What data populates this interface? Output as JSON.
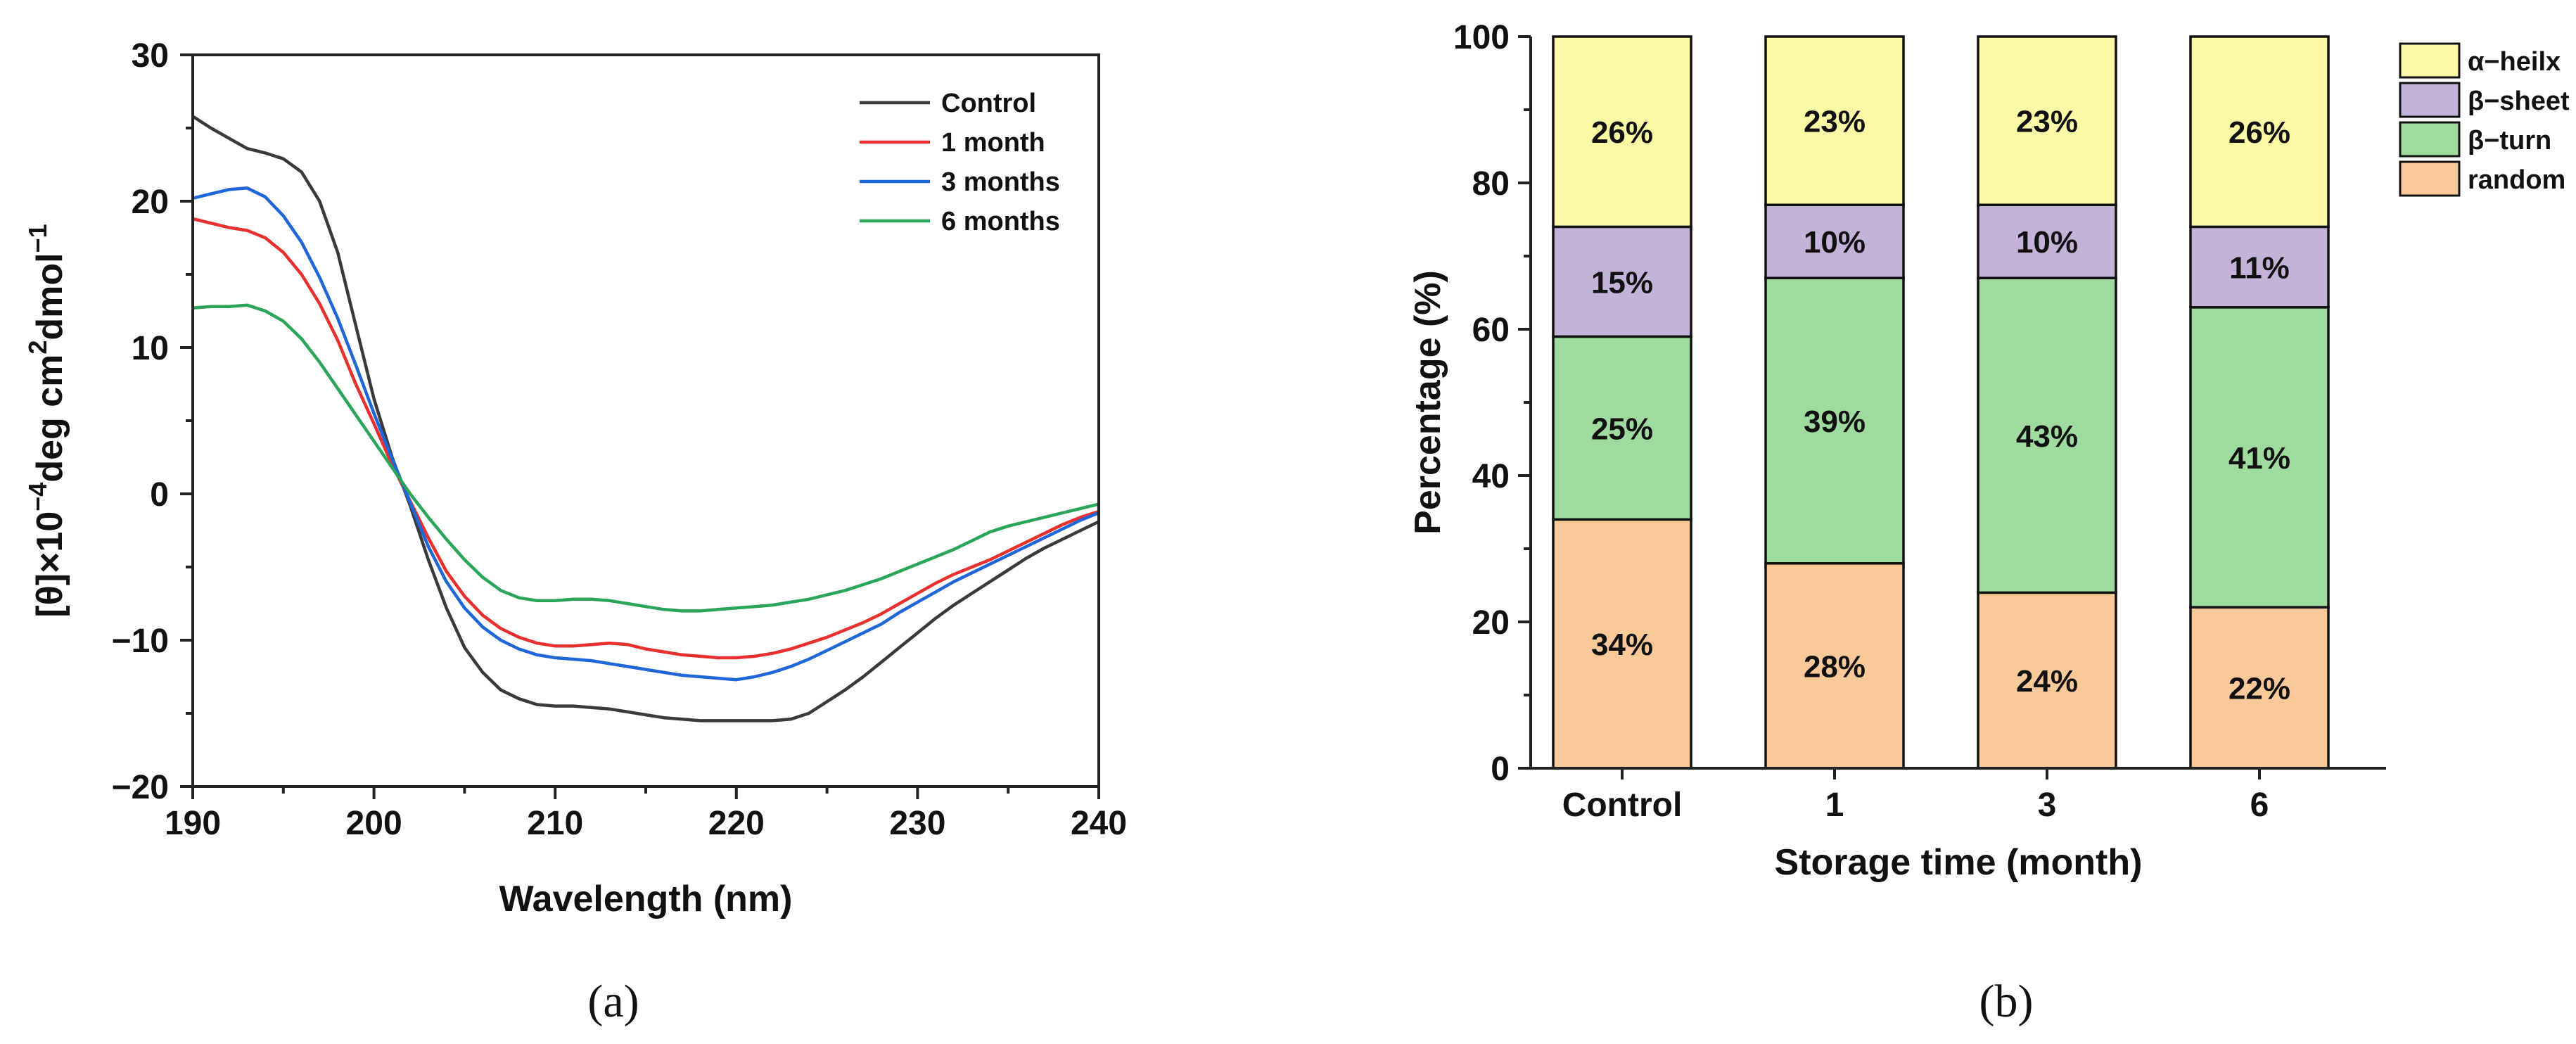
{
  "chart_data": [
    {
      "panel": "(a)",
      "type": "line",
      "xlabel": "Wavelength (nm)",
      "ylabel_parts": {
        "pre": "[θ]×10",
        "exp1": "−4",
        "mid": "deg cm",
        "exp2": "2",
        "post": "dmol",
        "exp3": "−1"
      },
      "xlim": [
        190,
        240
      ],
      "ylim": [
        -20,
        30
      ],
      "xticks": [
        190,
        200,
        210,
        220,
        230,
        240
      ],
      "yticks": [
        -20,
        -10,
        0,
        10,
        20,
        30
      ],
      "ytick_labels": [
        "−20",
        "−10",
        "0",
        "10",
        "20",
        "30"
      ],
      "legend_position": "top-right",
      "series": [
        {
          "name": "Control",
          "color": "#3a3a3a",
          "x": [
            190,
            191,
            192,
            193,
            194,
            195,
            196,
            197,
            198,
            199,
            200,
            201,
            202,
            203,
            204,
            205,
            206,
            207,
            208,
            209,
            210,
            211,
            212,
            213,
            214,
            215,
            216,
            217,
            218,
            219,
            220,
            221,
            222,
            223,
            224,
            225,
            226,
            227,
            228,
            229,
            230,
            231,
            232,
            233,
            234,
            235,
            236,
            237,
            238,
            239,
            240
          ],
          "y": [
            25.8,
            25.0,
            24.3,
            23.6,
            23.3,
            22.9,
            22.0,
            20.0,
            16.5,
            11.5,
            6.5,
            2.5,
            -0.8,
            -4.5,
            -7.8,
            -10.5,
            -12.2,
            -13.4,
            -14.0,
            -14.4,
            -14.5,
            -14.5,
            -14.6,
            -14.7,
            -14.9,
            -15.1,
            -15.3,
            -15.4,
            -15.5,
            -15.5,
            -15.5,
            -15.5,
            -15.5,
            -15.4,
            -15.0,
            -14.2,
            -13.4,
            -12.5,
            -11.5,
            -10.5,
            -9.5,
            -8.5,
            -7.6,
            -6.8,
            -6.0,
            -5.2,
            -4.4,
            -3.7,
            -3.1,
            -2.5,
            -1.9
          ]
        },
        {
          "name": "1 month",
          "color": "#e8302e",
          "x": [
            190,
            191,
            192,
            193,
            194,
            195,
            196,
            197,
            198,
            199,
            200,
            201,
            202,
            203,
            204,
            205,
            206,
            207,
            208,
            209,
            210,
            211,
            212,
            213,
            214,
            215,
            216,
            217,
            218,
            219,
            220,
            221,
            222,
            223,
            224,
            225,
            226,
            227,
            228,
            229,
            230,
            231,
            232,
            233,
            234,
            235,
            236,
            237,
            238,
            239,
            240
          ],
          "y": [
            18.8,
            18.5,
            18.2,
            18.0,
            17.5,
            16.5,
            15.0,
            13.0,
            10.5,
            7.5,
            4.8,
            2.0,
            -0.5,
            -3.0,
            -5.3,
            -7.0,
            -8.3,
            -9.2,
            -9.8,
            -10.2,
            -10.4,
            -10.4,
            -10.3,
            -10.2,
            -10.3,
            -10.6,
            -10.8,
            -11.0,
            -11.1,
            -11.2,
            -11.2,
            -11.1,
            -10.9,
            -10.6,
            -10.2,
            -9.8,
            -9.3,
            -8.8,
            -8.2,
            -7.5,
            -6.8,
            -6.1,
            -5.5,
            -5.0,
            -4.5,
            -3.9,
            -3.3,
            -2.7,
            -2.1,
            -1.6,
            -1.2
          ]
        },
        {
          "name": "3 months",
          "color": "#1f66d8",
          "x": [
            190,
            191,
            192,
            193,
            194,
            195,
            196,
            197,
            198,
            199,
            200,
            201,
            202,
            203,
            204,
            205,
            206,
            207,
            208,
            209,
            210,
            211,
            212,
            213,
            214,
            215,
            216,
            217,
            218,
            219,
            220,
            221,
            222,
            223,
            224,
            225,
            226,
            227,
            228,
            229,
            230,
            231,
            232,
            233,
            234,
            235,
            236,
            237,
            238,
            239,
            240
          ],
          "y": [
            20.2,
            20.5,
            20.8,
            20.9,
            20.3,
            19.0,
            17.2,
            14.8,
            12.0,
            8.8,
            5.5,
            2.4,
            -0.6,
            -3.6,
            -6.0,
            -7.8,
            -9.1,
            -10.0,
            -10.6,
            -11.0,
            -11.2,
            -11.3,
            -11.4,
            -11.6,
            -11.8,
            -12.0,
            -12.2,
            -12.4,
            -12.5,
            -12.6,
            -12.7,
            -12.5,
            -12.2,
            -11.8,
            -11.3,
            -10.7,
            -10.1,
            -9.5,
            -8.9,
            -8.1,
            -7.4,
            -6.7,
            -6.0,
            -5.4,
            -4.8,
            -4.2,
            -3.6,
            -3.0,
            -2.4,
            -1.8,
            -1.3
          ]
        },
        {
          "name": "6 months",
          "color": "#2aa55a",
          "x": [
            190,
            191,
            192,
            193,
            194,
            195,
            196,
            197,
            198,
            199,
            200,
            201,
            202,
            203,
            204,
            205,
            206,
            207,
            208,
            209,
            210,
            211,
            212,
            213,
            214,
            215,
            216,
            217,
            218,
            219,
            220,
            221,
            222,
            223,
            224,
            225,
            226,
            227,
            228,
            229,
            230,
            231,
            232,
            233,
            234,
            235,
            236,
            237,
            238,
            239,
            240
          ],
          "y": [
            12.7,
            12.8,
            12.8,
            12.9,
            12.5,
            11.8,
            10.6,
            9.0,
            7.2,
            5.4,
            3.6,
            1.8,
            0.0,
            -1.6,
            -3.1,
            -4.5,
            -5.7,
            -6.6,
            -7.1,
            -7.3,
            -7.3,
            -7.2,
            -7.2,
            -7.3,
            -7.5,
            -7.7,
            -7.9,
            -8.0,
            -8.0,
            -7.9,
            -7.8,
            -7.7,
            -7.6,
            -7.4,
            -7.2,
            -6.9,
            -6.6,
            -6.2,
            -5.8,
            -5.3,
            -4.8,
            -4.3,
            -3.8,
            -3.2,
            -2.6,
            -2.2,
            -1.9,
            -1.6,
            -1.3,
            -1.0,
            -0.7
          ]
        }
      ]
    },
    {
      "panel": "(b)",
      "type": "bar",
      "stacked": true,
      "xlabel": "Storage time (month)",
      "ylabel": "Percentage (%)",
      "ylim": [
        0,
        100
      ],
      "yticks": [
        0,
        20,
        40,
        60,
        80,
        100
      ],
      "categories": [
        "Control",
        "1",
        "3",
        "6"
      ],
      "legend_position": "top-right",
      "series": [
        {
          "name": "random",
          "color": "#f9c99a",
          "values": [
            34,
            28,
            24,
            22
          ],
          "labels": [
            "34%",
            "28%",
            "24%",
            "22%"
          ]
        },
        {
          "name": "β−turn",
          "color": "#9fda9f",
          "values": [
            25,
            39,
            43,
            41
          ],
          "labels": [
            "25%",
            "39%",
            "43%",
            "41%"
          ]
        },
        {
          "name": "β−sheet",
          "color": "#c3b3d9",
          "values": [
            15,
            10,
            10,
            11
          ],
          "labels": [
            "15%",
            "10%",
            "10%",
            "11%"
          ]
        },
        {
          "name": "α−heilx",
          "color": "#fbf9a6",
          "values": [
            26,
            23,
            23,
            26
          ],
          "labels": [
            "26%",
            "23%",
            "23%",
            "26%"
          ]
        }
      ]
    }
  ]
}
